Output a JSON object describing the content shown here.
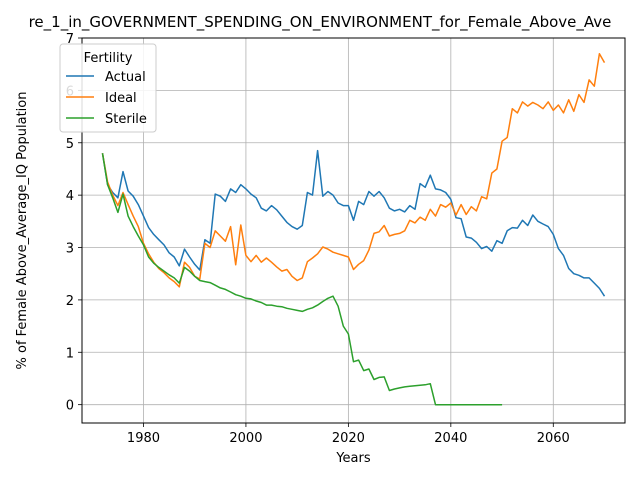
{
  "chart_data": {
    "type": "line",
    "title": "re_1_in_GOVERNMENT_SPENDING_ON_ENVIRONMENT_for_Female_Above_Ave",
    "xlabel": "Years",
    "ylabel": "% of Female Above_Average_IQ Population",
    "xlim": [
      1968,
      2074
    ],
    "ylim": [
      -0.35,
      7.0
    ],
    "xticks": [
      1980,
      2000,
      2020,
      2040,
      2060
    ],
    "yticks": [
      0,
      1,
      2,
      3,
      4,
      5,
      6,
      7
    ],
    "grid": true,
    "legend": {
      "title": "Fertility",
      "position": "top-left"
    },
    "series": [
      {
        "name": "Actual",
        "color": "#1f77b4",
        "x": [
          1972,
          1973,
          1974,
          1975,
          1976,
          1977,
          1978,
          1979,
          1980,
          1981,
          1982,
          1983,
          1984,
          1985,
          1986,
          1987,
          1988,
          1989,
          1990,
          1991,
          1992,
          1993,
          1994,
          1995,
          1996,
          1997,
          1998,
          1999,
          2000,
          2001,
          2002,
          2003,
          2004,
          2005,
          2006,
          2007,
          2008,
          2009,
          2010,
          2011,
          2012,
          2013,
          2014,
          2015,
          2016,
          2017,
          2018,
          2019,
          2020,
          2021,
          2022,
          2023,
          2024,
          2025,
          2026,
          2027,
          2028,
          2029,
          2030,
          2031,
          2032,
          2033,
          2034,
          2035,
          2036,
          2037,
          2038,
          2039,
          2040,
          2041,
          2042,
          2043,
          2044,
          2045,
          2046,
          2047,
          2048,
          2049,
          2050,
          2051,
          2052,
          2053,
          2054,
          2055,
          2056,
          2057,
          2058,
          2059,
          2060,
          2061,
          2062,
          2063,
          2064,
          2065,
          2066,
          2067,
          2068,
          2069,
          2070
        ],
        "y": [
          4.8,
          4.2,
          4.05,
          3.95,
          4.45,
          4.08,
          3.98,
          3.82,
          3.6,
          3.38,
          3.25,
          3.15,
          3.05,
          2.9,
          2.82,
          2.65,
          2.97,
          2.82,
          2.68,
          2.57,
          3.15,
          3.08,
          4.02,
          3.98,
          3.88,
          4.12,
          4.05,
          4.2,
          4.12,
          4.02,
          3.95,
          3.75,
          3.7,
          3.8,
          3.72,
          3.6,
          3.48,
          3.4,
          3.35,
          3.42,
          4.05,
          4.0,
          4.85,
          3.98,
          4.07,
          4.0,
          3.85,
          3.8,
          3.8,
          3.52,
          3.88,
          3.82,
          4.07,
          3.98,
          4.07,
          3.95,
          3.75,
          3.7,
          3.73,
          3.68,
          3.8,
          3.73,
          4.22,
          4.15,
          4.38,
          4.12,
          4.1,
          4.05,
          3.92,
          3.57,
          3.55,
          3.2,
          3.18,
          3.1,
          2.98,
          3.02,
          2.93,
          3.13,
          3.08,
          3.32,
          3.38,
          3.37,
          3.52,
          3.42,
          3.62,
          3.5,
          3.45,
          3.4,
          3.25,
          2.98,
          2.85,
          2.6,
          2.5,
          2.47,
          2.42,
          2.42,
          2.32,
          2.22,
          2.07
        ]
      },
      {
        "name": "Ideal",
        "color": "#ff7f0e",
        "x": [
          1972,
          1973,
          1974,
          1975,
          1976,
          1977,
          1978,
          1979,
          1980,
          1981,
          1982,
          1983,
          1984,
          1985,
          1986,
          1987,
          1988,
          1989,
          1990,
          1991,
          1992,
          1993,
          1994,
          1995,
          1996,
          1997,
          1998,
          1999,
          2000,
          2001,
          2002,
          2003,
          2004,
          2005,
          2006,
          2007,
          2008,
          2009,
          2010,
          2011,
          2012,
          2013,
          2014,
          2015,
          2016,
          2017,
          2018,
          2019,
          2020,
          2021,
          2022,
          2023,
          2024,
          2025,
          2026,
          2027,
          2028,
          2029,
          2030,
          2031,
          2032,
          2033,
          2034,
          2035,
          2036,
          2037,
          2038,
          2039,
          2040,
          2041,
          2042,
          2043,
          2044,
          2045,
          2046,
          2047,
          2048,
          2049,
          2050,
          2051,
          2052,
          2053,
          2054,
          2055,
          2056,
          2057,
          2058,
          2059,
          2060,
          2061,
          2062,
          2063,
          2064,
          2065,
          2066,
          2067,
          2068,
          2069,
          2070
        ],
        "y": [
          4.8,
          4.25,
          4.0,
          3.8,
          4.05,
          3.82,
          3.6,
          3.4,
          3.08,
          2.88,
          2.72,
          2.6,
          2.52,
          2.42,
          2.35,
          2.25,
          2.72,
          2.62,
          2.45,
          2.4,
          3.08,
          3.0,
          3.32,
          3.22,
          3.12,
          3.4,
          2.67,
          3.43,
          2.85,
          2.73,
          2.85,
          2.72,
          2.8,
          2.72,
          2.63,
          2.55,
          2.58,
          2.45,
          2.37,
          2.42,
          2.73,
          2.8,
          2.88,
          3.01,
          2.97,
          2.91,
          2.88,
          2.85,
          2.82,
          2.58,
          2.68,
          2.75,
          2.95,
          3.27,
          3.3,
          3.42,
          3.22,
          3.25,
          3.27,
          3.32,
          3.52,
          3.47,
          3.58,
          3.52,
          3.73,
          3.6,
          3.82,
          3.77,
          3.85,
          3.62,
          3.82,
          3.63,
          3.78,
          3.7,
          3.97,
          3.93,
          4.42,
          4.5,
          5.03,
          5.1,
          5.65,
          5.57,
          5.78,
          5.7,
          5.77,
          5.72,
          5.65,
          5.78,
          5.62,
          5.72,
          5.57,
          5.82,
          5.6,
          5.92,
          5.77,
          6.2,
          6.08,
          6.7,
          6.53
        ]
      },
      {
        "name": "Sterile",
        "color": "#2ca02c",
        "x": [
          1972,
          1973,
          1974,
          1975,
          1976,
          1977,
          1978,
          1979,
          1980,
          1981,
          1982,
          1983,
          1984,
          1985,
          1986,
          1987,
          1988,
          1989,
          1990,
          1991,
          1992,
          1993,
          1994,
          1995,
          1996,
          1997,
          1998,
          1999,
          2000,
          2001,
          2002,
          2003,
          2004,
          2005,
          2006,
          2007,
          2008,
          2009,
          2010,
          2011,
          2012,
          2013,
          2014,
          2015,
          2016,
          2017,
          2018,
          2019,
          2020,
          2021,
          2022,
          2023,
          2024,
          2025,
          2026,
          2027,
          2028,
          2029,
          2030,
          2031,
          2032,
          2033,
          2034,
          2035,
          2036,
          2037,
          2038,
          2039,
          2040,
          2041,
          2042,
          2043,
          2044,
          2045,
          2046,
          2047,
          2048,
          2049,
          2050
        ],
        "y": [
          4.8,
          4.2,
          3.95,
          3.67,
          4.02,
          3.6,
          3.4,
          3.22,
          3.05,
          2.82,
          2.7,
          2.62,
          2.55,
          2.48,
          2.42,
          2.32,
          2.62,
          2.55,
          2.45,
          2.37,
          2.35,
          2.33,
          2.28,
          2.23,
          2.2,
          2.15,
          2.1,
          2.07,
          2.03,
          2.02,
          1.98,
          1.95,
          1.9,
          1.9,
          1.88,
          1.87,
          1.84,
          1.82,
          1.8,
          1.78,
          1.82,
          1.85,
          1.9,
          1.97,
          2.03,
          2.07,
          1.88,
          1.5,
          1.35,
          0.82,
          0.85,
          0.65,
          0.68,
          0.48,
          0.52,
          0.53,
          0.27,
          0.3,
          0.32,
          0.34,
          0.35,
          0.36,
          0.37,
          0.38,
          0.4,
          0.0,
          0.0,
          0.0,
          0.0,
          0.0,
          0.0,
          0.0,
          0.0,
          0.0,
          0.0,
          0.0,
          0.0,
          0.0,
          0.0
        ]
      }
    ]
  }
}
